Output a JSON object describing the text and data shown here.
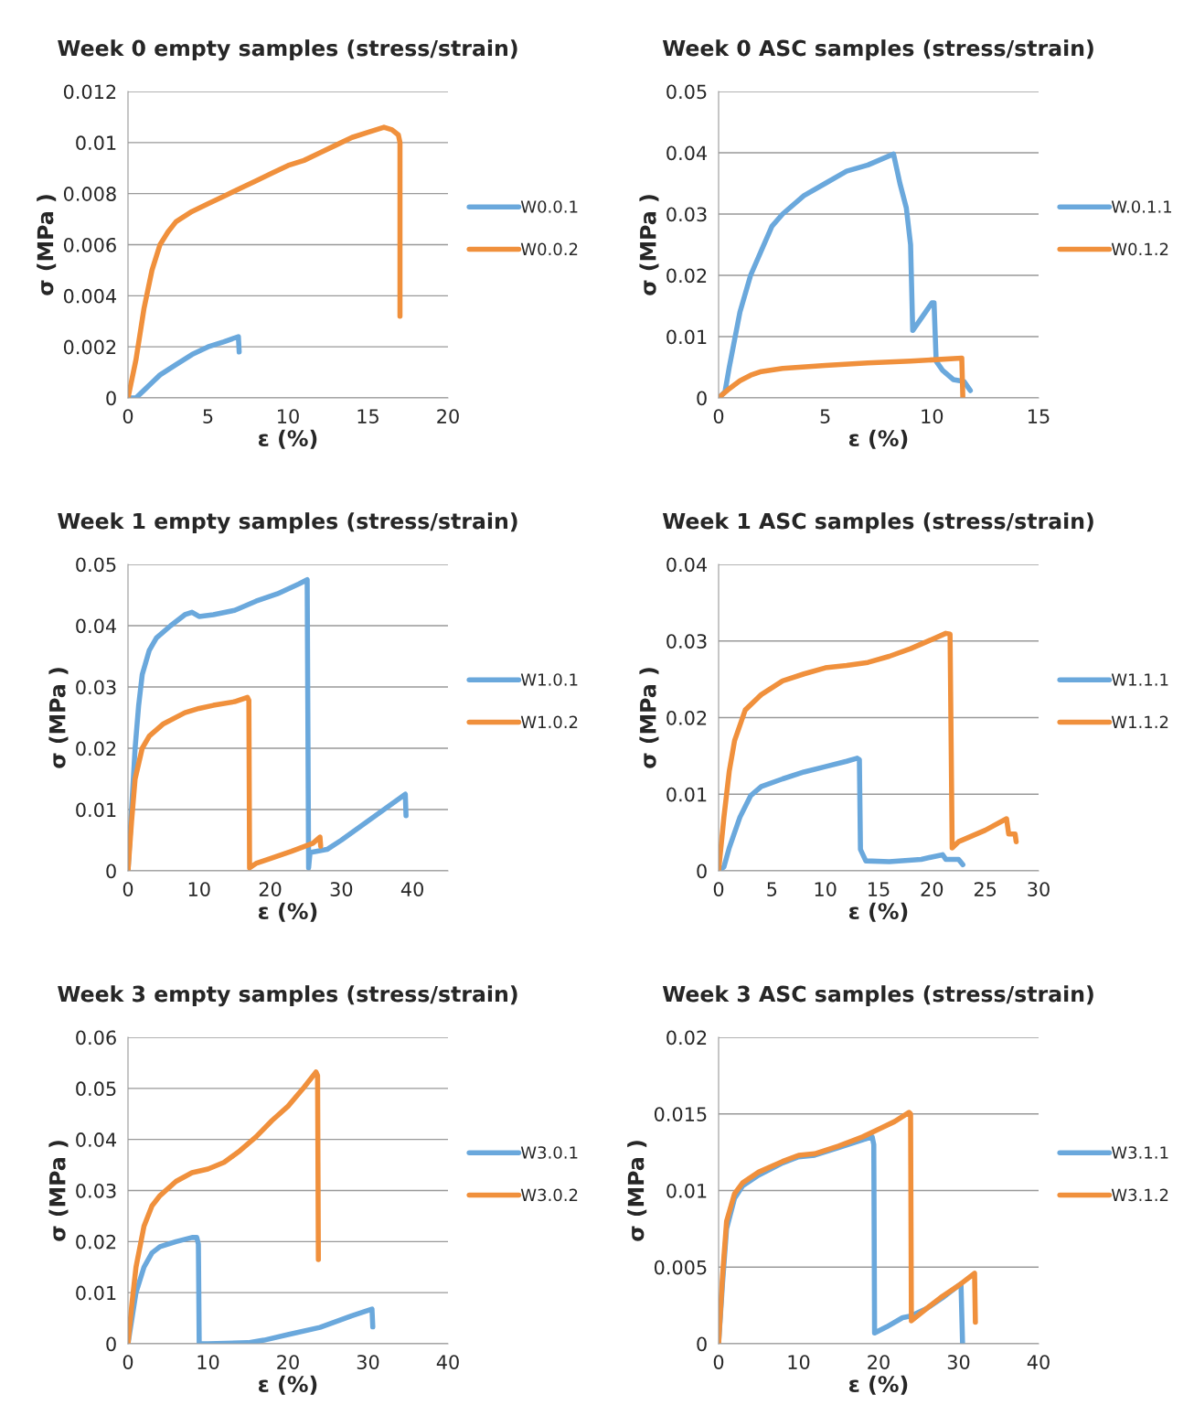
{
  "chart_data": [
    {
      "type": "line",
      "title": "Week 0 empty samples (stress/strain)",
      "xlabel": "ε (%)",
      "ylabel": "σ (MPa )",
      "xlim": [
        0,
        20
      ],
      "xticks": [
        0,
        5,
        10,
        15,
        20
      ],
      "ylim": [
        0,
        0.012
      ],
      "yticks": [
        0,
        0.002,
        0.004,
        0.006,
        0.008,
        0.01,
        0.012
      ],
      "grid": "y",
      "legend": "right",
      "series": [
        {
          "name": "W0.0.1",
          "color": "#6aa8dc",
          "x": [
            0,
            0.5,
            1,
            1.5,
            2,
            3,
            4,
            5,
            6,
            6.9,
            6.95
          ],
          "values": [
            0,
            0,
            0.0003,
            0.0006,
            0.0009,
            0.0013,
            0.0017,
            0.002,
            0.0022,
            0.0024,
            0.0018
          ]
        },
        {
          "name": "W0.0.2",
          "color": "#f0903c",
          "x": [
            0,
            0.5,
            1,
            1.5,
            2,
            2.5,
            3,
            4,
            5,
            6,
            7,
            8,
            9,
            10,
            11,
            12,
            13,
            14,
            15,
            16,
            16.5,
            16.9,
            17,
            17
          ],
          "values": [
            0,
            0.0015,
            0.0035,
            0.005,
            0.006,
            0.0065,
            0.0069,
            0.0073,
            0.0076,
            0.0079,
            0.0082,
            0.0085,
            0.0088,
            0.0091,
            0.0093,
            0.0096,
            0.0099,
            0.0102,
            0.0104,
            0.0106,
            0.0105,
            0.0103,
            0.01,
            0.0032
          ]
        }
      ]
    },
    {
      "type": "line",
      "title": "Week 0 ASC samples (stress/strain)",
      "xlabel": "ε (%)",
      "ylabel": "σ (MPa )",
      "xlim": [
        0,
        15
      ],
      "xticks": [
        0,
        5,
        10,
        15
      ],
      "ylim": [
        0,
        0.05
      ],
      "yticks": [
        0,
        0.01,
        0.02,
        0.03,
        0.04,
        0.05
      ],
      "grid": "y",
      "legend": "right",
      "series": [
        {
          "name": "W.0.1.1",
          "color": "#6aa8dc",
          "x": [
            0,
            0.3,
            0.5,
            1,
            1.5,
            2,
            2.5,
            3,
            4,
            5,
            6,
            7,
            8,
            8.2,
            8.5,
            8.8,
            9,
            9.1,
            10,
            10.1,
            10.2,
            10.5,
            11,
            11.5,
            11.8
          ],
          "values": [
            0,
            0.001,
            0.005,
            0.014,
            0.02,
            0.024,
            0.028,
            0.03,
            0.033,
            0.035,
            0.037,
            0.038,
            0.0395,
            0.0398,
            0.035,
            0.031,
            0.025,
            0.011,
            0.0155,
            0.0155,
            0.006,
            0.0045,
            0.003,
            0.0027,
            0.0012
          ]
        },
        {
          "name": "W0.1.2",
          "color": "#f0903c",
          "x": [
            0,
            0.5,
            1,
            1.5,
            2,
            3,
            5,
            7,
            9,
            11.4,
            11.45
          ],
          "values": [
            0,
            0.0015,
            0.0028,
            0.0037,
            0.0043,
            0.0048,
            0.0053,
            0.0057,
            0.006,
            0.0065,
            0
          ]
        }
      ]
    },
    {
      "type": "line",
      "title": "Week 1 empty samples (stress/strain)",
      "xlabel": "ε (%)",
      "ylabel": "σ (MPa )",
      "xlim": [
        0,
        45
      ],
      "xticks": [
        0,
        10,
        20,
        30,
        40
      ],
      "ylim": [
        0,
        0.05
      ],
      "yticks": [
        0,
        0.01,
        0.02,
        0.03,
        0.04,
        0.05
      ],
      "grid": "y",
      "legend": "right",
      "series": [
        {
          "name": "W1.0.1",
          "color": "#6aa8dc",
          "x": [
            0,
            0.5,
            1,
            1.5,
            2,
            3,
            4,
            6,
            8,
            9,
            10,
            12,
            15,
            18,
            21,
            24,
            25.2,
            25.4,
            25.6,
            28,
            30,
            33,
            36,
            39,
            39.1
          ],
          "values": [
            0,
            0.01,
            0.02,
            0.027,
            0.032,
            0.036,
            0.038,
            0.04,
            0.0418,
            0.0422,
            0.0415,
            0.0418,
            0.0425,
            0.044,
            0.0452,
            0.0468,
            0.0475,
            0.0005,
            0.003,
            0.0035,
            0.005,
            0.0075,
            0.01,
            0.0125,
            0.009
          ]
        },
        {
          "name": "W1.0.2",
          "color": "#f0903c",
          "x": [
            0,
            0.5,
            1,
            2,
            3,
            5,
            8,
            10,
            12,
            15,
            16.8,
            17,
            17.1,
            18,
            20,
            23,
            26,
            27,
            27.1
          ],
          "values": [
            0,
            0.008,
            0.015,
            0.02,
            0.022,
            0.024,
            0.0258,
            0.0265,
            0.027,
            0.0276,
            0.0283,
            0.0278,
            0.0005,
            0.0012,
            0.002,
            0.0032,
            0.0045,
            0.0055,
            0.004
          ]
        }
      ]
    },
    {
      "type": "line",
      "title": "Week 1 ASC samples (stress/strain)",
      "xlabel": "ε (%)",
      "ylabel": "σ (MPa )",
      "xlim": [
        0,
        30
      ],
      "xticks": [
        0,
        5,
        10,
        15,
        20,
        25,
        30
      ],
      "ylim": [
        0,
        0.04
      ],
      "yticks": [
        0,
        0.01,
        0.02,
        0.03,
        0.04
      ],
      "grid": "y",
      "legend": "right",
      "series": [
        {
          "name": "W1.1.1",
          "color": "#6aa8dc",
          "x": [
            0,
            0.5,
            1,
            2,
            3,
            4,
            6,
            8,
            10,
            12,
            13,
            13.2,
            13.3,
            13.8,
            16,
            19,
            21,
            21.3,
            22.5,
            22.9
          ],
          "values": [
            0,
            0.0005,
            0.003,
            0.007,
            0.0098,
            0.011,
            0.012,
            0.0129,
            0.0136,
            0.0143,
            0.0147,
            0.0145,
            0.0028,
            0.0013,
            0.0012,
            0.0015,
            0.0021,
            0.0015,
            0.0015,
            0.0008
          ]
        },
        {
          "name": "W1.1.2",
          "color": "#f0903c",
          "x": [
            0,
            0.5,
            1,
            1.5,
            2.5,
            4,
            6,
            8,
            10,
            12,
            14,
            16,
            18,
            20,
            21.3,
            21.7,
            21.9,
            22.5,
            25,
            27,
            27.2,
            27.8,
            27.9
          ],
          "values": [
            0,
            0.007,
            0.013,
            0.017,
            0.021,
            0.023,
            0.0248,
            0.0257,
            0.0265,
            0.0268,
            0.0272,
            0.028,
            0.029,
            0.0302,
            0.031,
            0.0309,
            0.003,
            0.0038,
            0.0053,
            0.0068,
            0.0048,
            0.0048,
            0.0038
          ]
        }
      ]
    },
    {
      "type": "line",
      "title": "Week 3 empty samples (stress/strain)",
      "xlabel": "ε (%)",
      "ylabel": "σ (MPa )",
      "xlim": [
        0,
        40
      ],
      "xticks": [
        0,
        10,
        20,
        30,
        40
      ],
      "ylim": [
        0,
        0.06
      ],
      "yticks": [
        0,
        0.01,
        0.02,
        0.03,
        0.04,
        0.05,
        0.06
      ],
      "grid": "y",
      "legend": "right",
      "series": [
        {
          "name": "W3.0.1",
          "color": "#6aa8dc",
          "x": [
            0,
            0.5,
            1,
            2,
            3,
            4,
            6,
            8,
            8.6,
            8.8,
            8.9,
            10,
            15,
            17,
            20,
            24,
            28,
            30.5,
            30.6
          ],
          "values": [
            0,
            0.005,
            0.01,
            0.015,
            0.0178,
            0.019,
            0.02,
            0.0208,
            0.0208,
            0.0195,
            0,
            0,
            0.0002,
            0.0007,
            0.0018,
            0.0032,
            0.0055,
            0.0068,
            0.0033
          ]
        },
        {
          "name": "W3.0.2",
          "color": "#f0903c",
          "x": [
            0,
            0.5,
            1,
            2,
            3,
            4,
            6,
            8,
            10,
            12,
            14,
            16,
            18,
            20,
            22,
            23.5,
            23.7,
            23.8
          ],
          "values": [
            0,
            0.008,
            0.015,
            0.023,
            0.027,
            0.029,
            0.0318,
            0.0335,
            0.0342,
            0.0355,
            0.0378,
            0.0405,
            0.0437,
            0.0465,
            0.0502,
            0.0532,
            0.0525,
            0.0165
          ]
        }
      ]
    },
    {
      "type": "line",
      "title": "Week 3 ASC samples (stress/strain)",
      "xlabel": "ε (%)",
      "ylabel": "σ (MPa )",
      "xlim": [
        0,
        40
      ],
      "xticks": [
        0,
        10,
        20,
        30,
        40
      ],
      "ylim": [
        0,
        0.02
      ],
      "yticks": [
        0,
        0.005,
        0.01,
        0.015,
        0.02
      ],
      "grid": "y",
      "legend": "right",
      "series": [
        {
          "name": "W3.1.1",
          "color": "#6aa8dc",
          "x": [
            0,
            0.5,
            1,
            2,
            3,
            5,
            8,
            10,
            12,
            15,
            18,
            19.2,
            19.4,
            19.5,
            21,
            23,
            24,
            26,
            28,
            30,
            30.3,
            30.5
          ],
          "values": [
            0,
            0.004,
            0.0075,
            0.0095,
            0.0103,
            0.011,
            0.0118,
            0.0122,
            0.0123,
            0.0128,
            0.0133,
            0.0135,
            0.013,
            0.0007,
            0.0011,
            0.0017,
            0.0018,
            0.0023,
            0.003,
            0.0038,
            0.0039,
            0
          ]
        },
        {
          "name": "W3.1.2",
          "color": "#f0903c",
          "x": [
            0,
            0.5,
            1,
            2,
            3,
            5,
            8,
            10,
            12,
            15,
            18,
            20,
            22,
            23.8,
            24,
            24.1,
            26,
            28,
            30,
            32,
            32.1
          ],
          "values": [
            0,
            0.0045,
            0.008,
            0.0098,
            0.0105,
            0.0112,
            0.0119,
            0.0123,
            0.0124,
            0.0129,
            0.0135,
            0.014,
            0.0145,
            0.0151,
            0.015,
            0.0015,
            0.0023,
            0.0031,
            0.0038,
            0.0046,
            0.0014
          ]
        }
      ]
    }
  ]
}
